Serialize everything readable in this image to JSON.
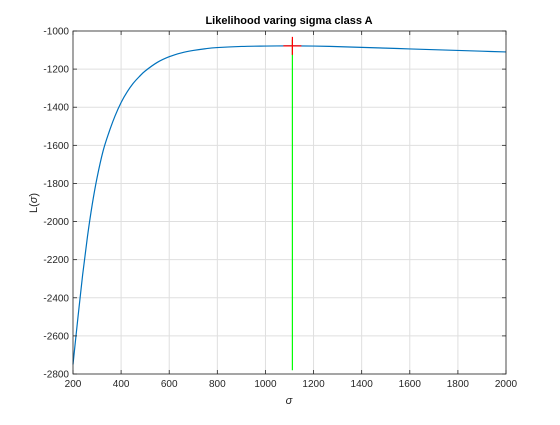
{
  "chart_data": {
    "type": "line",
    "title": "Likelihood varing sigma class A",
    "xlabel": "σ",
    "ylabel_prefix": "L(",
    "ylabel_symbol": "σ",
    "ylabel_suffix": ")",
    "xlim": [
      200,
      2000
    ],
    "ylim": [
      -2800,
      -1000
    ],
    "xticks": [
      200,
      400,
      600,
      800,
      1000,
      1200,
      1400,
      1600,
      1800,
      2000
    ],
    "yticks": [
      -2800,
      -2600,
      -2400,
      -2200,
      -2000,
      -1800,
      -1600,
      -1400,
      -1200,
      -1000
    ],
    "grid": true,
    "series": [
      {
        "color": "#0072BD",
        "x": [
          200,
          220,
          240,
          260,
          280,
          300,
          325,
          350,
          375,
          400,
          425,
          450,
          475,
          500,
          550,
          600,
          650,
          700,
          750,
          800,
          900,
          1000,
          1112,
          1200,
          1300,
          1400,
          1500,
          1600,
          1700,
          1800,
          1900,
          2000
        ],
        "y": [
          -2750,
          -2510,
          -2280,
          -2080,
          -1910,
          -1770,
          -1630,
          -1530,
          -1445,
          -1375,
          -1320,
          -1275,
          -1240,
          -1210,
          -1165,
          -1135,
          -1115,
          -1102,
          -1093,
          -1087,
          -1081,
          -1079,
          -1078,
          -1079,
          -1082,
          -1086,
          -1090,
          -1094,
          -1098,
          -1102,
          -1106,
          -1110
        ]
      }
    ],
    "max_marker": {
      "x": 1112,
      "y": -1078,
      "color": "#ff0000",
      "shape": "plus"
    },
    "vertical_line": {
      "x": 1112,
      "y_from": -2780,
      "y_to": -1045,
      "color": "#00ff00"
    }
  }
}
